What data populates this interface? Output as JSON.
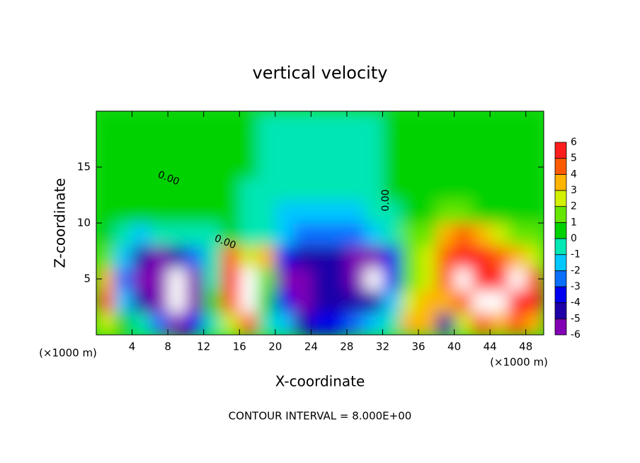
{
  "chart_data": {
    "type": "contour",
    "title": "vertical velocity",
    "x_label": "X-coordinate",
    "y_label": "Z-coordinate",
    "x_unit_label": "(×1000 m)",
    "footer": "CONTOUR INTERVAL = 8.000E+00",
    "contour_label": "0.00",
    "xlim": [
      0,
      50
    ],
    "ylim": [
      0,
      20
    ],
    "xticks": [
      4,
      8,
      12,
      16,
      20,
      24,
      28,
      32,
      36,
      40,
      44,
      48
    ],
    "yticks": [
      5,
      10,
      15
    ],
    "x": [
      1,
      3,
      5,
      7,
      9,
      11,
      13,
      15,
      17,
      19,
      21,
      23,
      25,
      27,
      29,
      31,
      33,
      35,
      37,
      39,
      41,
      43,
      45,
      47,
      49
    ],
    "y": [
      1,
      3,
      5,
      7,
      9,
      11,
      13,
      15,
      17,
      19
    ],
    "z": [
      [
        3,
        0.5,
        0,
        -2,
        -5,
        -3,
        0,
        3,
        5,
        0,
        -1.5,
        -4,
        -3,
        -3,
        -2.5,
        -1.5,
        0,
        4,
        4,
        -4,
        3,
        5,
        4,
        5,
        4
      ],
      [
        4.5,
        -1,
        -4,
        -5,
        -7,
        -5,
        1,
        5,
        7,
        1,
        -3,
        -5,
        -4,
        -4,
        -4,
        -4,
        -1,
        3,
        3.5,
        4,
        5,
        7,
        7,
        6,
        6
      ],
      [
        4,
        -2,
        -5,
        -6,
        -7,
        -5,
        0,
        6,
        7,
        2,
        -5,
        -5,
        -4,
        -4,
        -5,
        -7,
        -3,
        2,
        3,
        5,
        7,
        6,
        6,
        7,
        5
      ],
      [
        2,
        -1,
        -4,
        -5,
        -4,
        -2,
        0,
        5,
        3,
        4,
        -3,
        -4,
        -4,
        -4,
        -5,
        -6,
        -3,
        2,
        3,
        5,
        6,
        6,
        5,
        4,
        3
      ],
      [
        0.5,
        0,
        -1,
        -0.5,
        0,
        0,
        0,
        0.5,
        0,
        -0.5,
        -1.5,
        -2,
        -2.5,
        -2.5,
        -2,
        -1.5,
        0,
        2,
        2,
        4,
        5,
        4,
        3,
        2,
        2
      ],
      [
        0.5,
        0.8,
        0.5,
        0.3,
        0.3,
        0.3,
        0.3,
        0.2,
        -0.2,
        -0.5,
        -1,
        -1.5,
        -1.5,
        -1.5,
        -1,
        -0.5,
        0,
        1,
        1,
        1.5,
        2,
        1,
        0.5,
        0.5,
        0.5
      ],
      [
        0.5,
        1,
        0.8,
        0.5,
        0.5,
        0.5,
        0.3,
        0.2,
        0,
        -0.3,
        -0.5,
        -0.7,
        -0.7,
        -0.6,
        -0.3,
        0,
        0.2,
        0.5,
        0.3,
        0.3,
        0.5,
        0.3,
        0.3,
        0.3,
        0.3
      ],
      [
        0.5,
        1,
        1,
        0.8,
        0.8,
        0.6,
        0.4,
        0.3,
        0.2,
        0,
        -0.2,
        -0.4,
        -0.5,
        -0.4,
        -0.2,
        0,
        0.2,
        0.3,
        0.3,
        0.3,
        0.3,
        0.3,
        0.3,
        0.3,
        0.3
      ],
      [
        0.4,
        0.6,
        0.8,
        1,
        1,
        0.8,
        0.5,
        0.3,
        0.2,
        0,
        -0.2,
        -0.3,
        -0.3,
        -0.3,
        -0.2,
        0,
        0.2,
        0.3,
        0.3,
        0.3,
        0.3,
        0.3,
        0.3,
        0.3,
        0.3
      ],
      [
        0.3,
        0.4,
        0.5,
        0.6,
        0.6,
        0.5,
        0.4,
        0.3,
        0.2,
        0,
        0,
        -0.1,
        -0.1,
        -0.1,
        0,
        0,
        0.2,
        0.3,
        0.3,
        0.3,
        0.3,
        0.3,
        0.3,
        0.3,
        0.3
      ]
    ],
    "colorbar": {
      "levels": [
        -6,
        -5,
        -4,
        -3,
        -2,
        -1,
        0,
        1,
        2,
        3,
        4,
        5,
        6
      ],
      "colors": [
        "#8200b4",
        "#1e00a8",
        "#0000f0",
        "#0a6eff",
        "#00c8ff",
        "#00e6b4",
        "#00d200",
        "#64e600",
        "#d2f000",
        "#ffb400",
        "#ff5a00",
        "#ff1e1e"
      ],
      "over_color": "#ffffff"
    }
  }
}
